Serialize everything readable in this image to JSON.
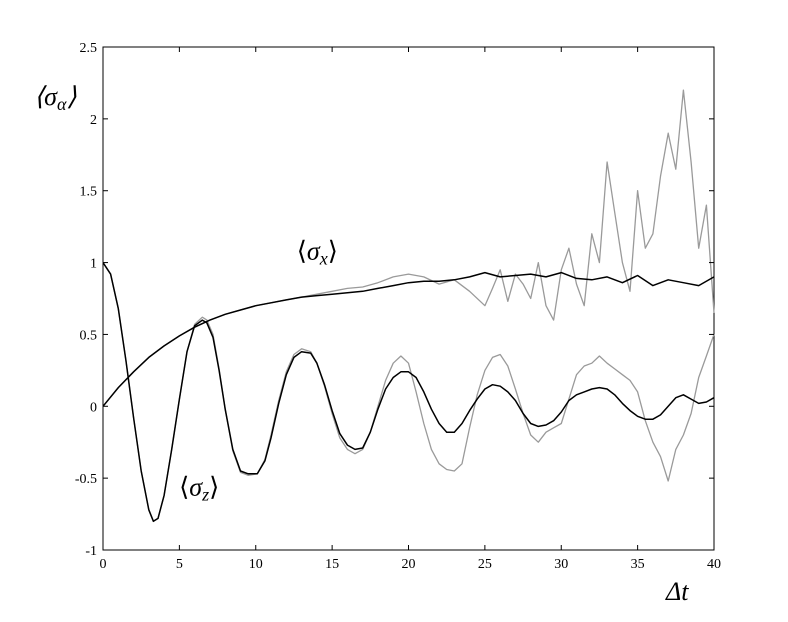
{
  "chart_data": {
    "type": "line",
    "title": "",
    "xlabel": "Δt",
    "ylabel_parts": {
      "open": "⟨",
      "sym": "σ",
      "sub": "α",
      "close": "⟩"
    },
    "xlim": [
      0,
      40
    ],
    "ylim": [
      -1,
      2.5
    ],
    "xticks": [
      0,
      5,
      10,
      15,
      20,
      25,
      30,
      35,
      40
    ],
    "xtick_labels": [
      "0",
      "5",
      "10",
      "15",
      "20",
      "25",
      "30",
      "35",
      "40"
    ],
    "yticks": [
      -1,
      -0.5,
      0,
      0.5,
      1,
      1.5,
      2,
      2.5
    ],
    "ytick_labels": [
      "-1",
      "-0.5",
      "0",
      "0.5",
      "1",
      "1.5",
      "2",
      "2.5"
    ],
    "grid": false,
    "annotations": [
      {
        "open": "⟨",
        "sym": "σ",
        "sub": "x",
        "close": "⟩",
        "x": 15.3,
        "y": 1.02
      },
      {
        "open": "⟨",
        "sym": "σ",
        "sub": "z",
        "close": "⟩",
        "x": 7.6,
        "y": -0.62
      }
    ],
    "colors": {
      "black": "#000000",
      "gray": "#9a9a9a"
    },
    "series": [
      {
        "color": "#000000",
        "x": [
          0,
          1,
          2,
          3,
          4,
          5,
          6,
          7,
          8,
          9,
          10,
          11,
          12,
          13,
          14,
          15,
          16,
          17,
          18,
          19,
          20,
          21,
          22,
          23,
          24,
          25,
          26,
          27,
          28,
          29,
          30,
          31,
          32,
          33,
          34,
          35,
          36,
          37,
          38,
          39,
          40
        ],
        "y": [
          0,
          0.13,
          0.24,
          0.34,
          0.42,
          0.49,
          0.55,
          0.6,
          0.64,
          0.67,
          0.7,
          0.72,
          0.74,
          0.76,
          0.77,
          0.78,
          0.79,
          0.8,
          0.82,
          0.84,
          0.86,
          0.87,
          0.87,
          0.88,
          0.9,
          0.93,
          0.9,
          0.91,
          0.92,
          0.9,
          0.93,
          0.89,
          0.88,
          0.9,
          0.86,
          0.91,
          0.84,
          0.88,
          0.86,
          0.84,
          0.9
        ]
      },
      {
        "color": "#9a9a9a",
        "x": [
          0,
          1,
          2,
          3,
          4,
          5,
          6,
          7,
          8,
          9,
          10,
          11,
          12,
          13,
          14,
          15,
          16,
          17,
          18,
          19,
          20,
          21,
          22,
          23,
          24,
          25,
          25.5,
          26,
          26.5,
          27,
          27.5,
          28,
          28.5,
          29,
          29.5,
          30,
          30.5,
          31,
          31.5,
          32,
          32.5,
          33,
          33.5,
          34,
          34.5,
          35,
          35.5,
          36,
          36.5,
          37,
          37.5,
          38,
          38.5,
          39,
          39.5,
          40
        ],
        "y": [
          0,
          0.13,
          0.24,
          0.34,
          0.42,
          0.49,
          0.55,
          0.6,
          0.64,
          0.67,
          0.7,
          0.72,
          0.74,
          0.76,
          0.78,
          0.8,
          0.82,
          0.83,
          0.86,
          0.9,
          0.92,
          0.9,
          0.85,
          0.88,
          0.8,
          0.7,
          0.82,
          0.95,
          0.73,
          0.92,
          0.85,
          0.75,
          1.0,
          0.7,
          0.6,
          0.95,
          1.1,
          0.85,
          0.7,
          1.2,
          1.0,
          1.7,
          1.35,
          1.0,
          0.8,
          1.5,
          1.1,
          1.2,
          1.6,
          1.9,
          1.65,
          2.2,
          1.7,
          1.1,
          1.4,
          0.65
        ]
      },
      {
        "color": "#000000",
        "x": [
          0,
          0.5,
          1,
          1.5,
          2,
          2.5,
          3,
          3.3,
          3.6,
          4,
          4.5,
          5,
          5.5,
          6,
          6.5,
          6.8,
          7.2,
          7.6,
          8,
          8.5,
          9,
          9.5,
          10.1,
          10.6,
          11,
          11.5,
          12,
          12.5,
          13,
          13.6,
          14,
          14.5,
          15,
          15.5,
          16,
          16.5,
          17,
          17.5,
          18,
          18.5,
          19,
          19.5,
          20,
          20.5,
          21,
          21.5,
          22,
          22.5,
          23,
          23.5,
          24,
          24.5,
          25,
          25.5,
          26,
          26.5,
          27,
          27.5,
          28,
          28.5,
          29,
          29.5,
          30,
          30.5,
          31,
          31.5,
          32,
          32.5,
          33,
          33.5,
          34,
          34.5,
          35,
          35.5,
          36,
          36.5,
          37,
          37.5,
          38,
          38.5,
          39,
          39.5,
          40
        ],
        "y": [
          1,
          0.92,
          0.68,
          0.32,
          -0.08,
          -0.45,
          -0.72,
          -0.8,
          -0.78,
          -0.62,
          -0.3,
          0.05,
          0.38,
          0.56,
          0.6,
          0.58,
          0.48,
          0.25,
          -0.02,
          -0.3,
          -0.45,
          -0.47,
          -0.47,
          -0.38,
          -0.22,
          0.02,
          0.22,
          0.34,
          0.38,
          0.37,
          0.3,
          0.15,
          -0.03,
          -0.19,
          -0.27,
          -0.3,
          -0.29,
          -0.18,
          -0.02,
          0.12,
          0.2,
          0.24,
          0.24,
          0.2,
          0.1,
          -0.02,
          -0.12,
          -0.18,
          -0.18,
          -0.12,
          -0.03,
          0.05,
          0.12,
          0.15,
          0.14,
          0.1,
          0.04,
          -0.05,
          -0.12,
          -0.14,
          -0.13,
          -0.1,
          -0.04,
          0.04,
          0.08,
          0.1,
          0.12,
          0.13,
          0.12,
          0.08,
          0.02,
          -0.03,
          -0.07,
          -0.09,
          -0.09,
          -0.06,
          0,
          0.06,
          0.08,
          0.05,
          0.02,
          0.03,
          0.06
        ]
      },
      {
        "color": "#9a9a9a",
        "x": [
          0,
          0.5,
          1,
          1.5,
          2,
          2.5,
          3,
          3.3,
          3.6,
          4,
          4.5,
          5,
          5.5,
          6,
          6.5,
          6.8,
          7.2,
          7.6,
          8,
          8.5,
          9,
          9.5,
          10.1,
          10.6,
          11,
          11.5,
          12,
          12.5,
          13,
          13.6,
          14,
          14.5,
          15,
          15.5,
          16,
          16.5,
          17,
          17.5,
          18,
          18.5,
          19,
          19.5,
          20,
          20.5,
          21,
          21.5,
          22,
          22.5,
          23,
          23.5,
          24,
          24.5,
          25,
          25.5,
          26,
          26.5,
          27,
          27.5,
          28,
          28.5,
          29,
          29.5,
          30,
          30.5,
          31,
          31.5,
          32,
          32.5,
          33,
          33.5,
          34,
          34.5,
          35,
          35.5,
          36,
          36.5,
          37,
          37.5,
          38,
          38.5,
          39,
          39.5,
          40
        ],
        "y": [
          1,
          0.92,
          0.68,
          0.32,
          -0.08,
          -0.45,
          -0.72,
          -0.8,
          -0.78,
          -0.62,
          -0.3,
          0.05,
          0.38,
          0.57,
          0.62,
          0.6,
          0.5,
          0.26,
          -0.02,
          -0.31,
          -0.46,
          -0.48,
          -0.47,
          -0.37,
          -0.2,
          0.04,
          0.24,
          0.36,
          0.4,
          0.38,
          0.3,
          0.14,
          -0.05,
          -0.22,
          -0.3,
          -0.33,
          -0.3,
          -0.18,
          0,
          0.18,
          0.3,
          0.35,
          0.3,
          0.1,
          -0.12,
          -0.3,
          -0.4,
          -0.44,
          -0.45,
          -0.4,
          -0.15,
          0.08,
          0.25,
          0.34,
          0.36,
          0.28,
          0.12,
          -0.05,
          -0.2,
          -0.25,
          -0.18,
          -0.15,
          -0.12,
          0.05,
          0.22,
          0.28,
          0.3,
          0.35,
          0.3,
          0.26,
          0.22,
          0.18,
          0.1,
          -0.1,
          -0.25,
          -0.35,
          -0.52,
          -0.3,
          -0.2,
          -0.05,
          0.2,
          0.35,
          0.5
        ]
      }
    ]
  }
}
